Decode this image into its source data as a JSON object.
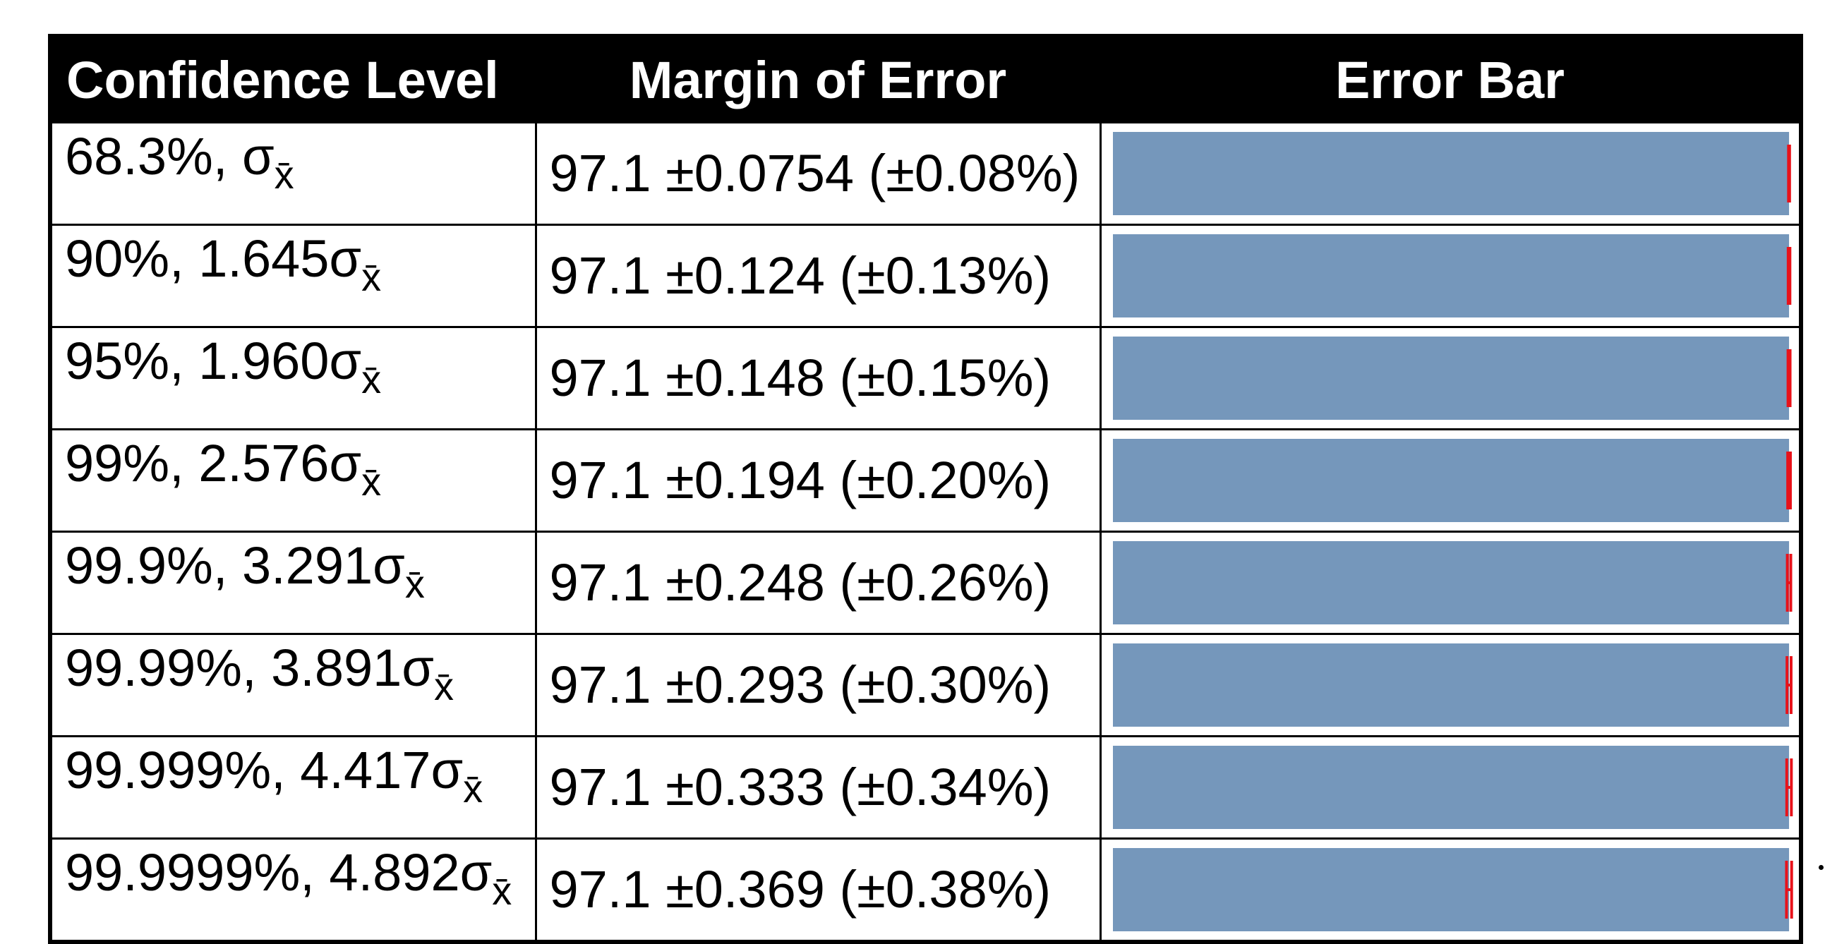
{
  "table": {
    "headers": [
      "Confidence Level",
      "Margin of Error",
      "Error Bar"
    ],
    "sigma_symbol": "σ",
    "sigma_subscript": "x̄",
    "rows": [
      {
        "confidence": "68.3%, ",
        "multiplier": "",
        "margin": "97.1 ±0.0754 (±0.08%)",
        "mean": 97.1,
        "error": 0.0754
      },
      {
        "confidence": "90%, ",
        "multiplier": "1.645",
        "margin": "97.1 ±0.124 (±0.13%)",
        "mean": 97.1,
        "error": 0.124
      },
      {
        "confidence": "95%, ",
        "multiplier": "1.960",
        "margin": "97.1 ±0.148 (±0.15%)",
        "mean": 97.1,
        "error": 0.148
      },
      {
        "confidence": "99%, ",
        "multiplier": "2.576",
        "margin": "97.1 ±0.194 (±0.20%)",
        "mean": 97.1,
        "error": 0.194
      },
      {
        "confidence": "99.9%, ",
        "multiplier": "3.291",
        "margin": "97.1 ±0.248 (±0.26%)",
        "mean": 97.1,
        "error": 0.248
      },
      {
        "confidence": "99.99%, ",
        "multiplier": "3.891",
        "margin": "97.1 ±0.293 (±0.30%)",
        "mean": 97.1,
        "error": 0.293
      },
      {
        "confidence": "99.999%, ",
        "multiplier": "4.417",
        "margin": "97.1 ±0.333 (±0.34%)",
        "mean": 97.1,
        "error": 0.333
      },
      {
        "confidence": "99.9999%, ",
        "multiplier": "4.892",
        "margin": "97.1 ±0.369 (±0.38%)",
        "mean": 97.1,
        "error": 0.369
      }
    ]
  },
  "chart_data": {
    "type": "bar",
    "orientation": "horizontal",
    "categories": [
      "68.3%",
      "90%",
      "95%",
      "99%",
      "99.9%",
      "99.99%",
      "99.999%",
      "99.9999%"
    ],
    "values": [
      97.1,
      97.1,
      97.1,
      97.1,
      97.1,
      97.1,
      97.1,
      97.1
    ],
    "errors": [
      0.0754,
      0.124,
      0.148,
      0.194,
      0.248,
      0.293,
      0.333,
      0.369
    ],
    "xlim": [
      0,
      97.6
    ],
    "title": "",
    "xlabel": "",
    "ylabel": "",
    "grid": false,
    "colors": {
      "bar": "#7597bb",
      "error_bar": "#e8121a",
      "header_bg": "#000000",
      "header_text": "#ffffff"
    }
  }
}
